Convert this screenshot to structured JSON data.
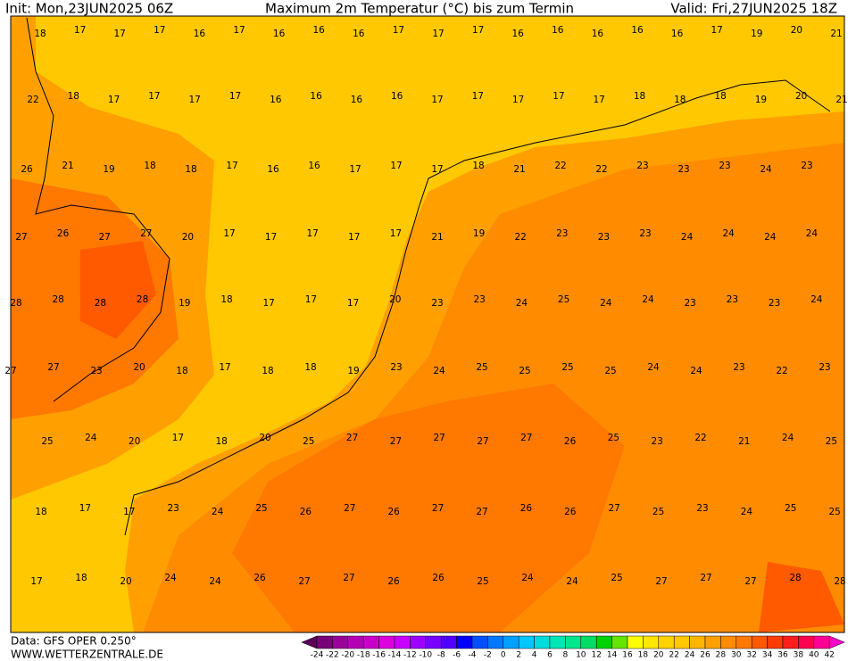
{
  "header": {
    "init": "Init: Mon,23JUN2025 06Z",
    "title": "Maximum 2m Temperatur (°C) bis zum Termin",
    "valid": "Valid: Fri,27JUN2025 18Z"
  },
  "map": {
    "rows": [
      [
        18,
        17,
        17,
        17,
        16,
        17,
        16,
        16,
        16,
        17,
        17,
        17,
        16,
        16,
        16,
        16,
        16,
        17,
        19,
        20,
        21
      ],
      [
        22,
        18,
        17,
        17,
        17,
        17,
        16,
        16,
        16,
        16,
        17,
        17,
        17,
        17,
        17,
        18,
        18,
        18,
        19,
        20,
        21
      ],
      [
        26,
        21,
        19,
        18,
        18,
        17,
        16,
        16,
        17,
        17,
        17,
        18,
        21,
        22,
        22,
        23,
        23,
        23,
        24,
        23
      ],
      [
        27,
        26,
        27,
        27,
        20,
        17,
        17,
        17,
        17,
        17,
        21,
        19,
        22,
        23,
        23,
        23,
        24,
        24,
        24,
        24
      ],
      [
        28,
        28,
        28,
        28,
        19,
        18,
        17,
        17,
        17,
        20,
        23,
        23,
        24,
        25,
        24,
        24,
        23,
        23,
        23,
        24
      ],
      [
        27,
        27,
        23,
        20,
        18,
        17,
        18,
        18,
        19,
        23,
        24,
        25,
        25,
        25,
        25,
        24,
        24,
        23,
        22,
        23
      ],
      [
        25,
        24,
        20,
        17,
        18,
        20,
        25,
        27,
        27,
        27,
        27,
        27,
        26,
        25,
        23,
        22,
        21,
        24,
        25
      ],
      [
        18,
        17,
        17,
        23,
        24,
        25,
        26,
        27,
        26,
        27,
        27,
        26,
        26,
        27,
        25,
        23,
        24,
        25,
        25
      ],
      [
        17,
        18,
        20,
        24,
        24,
        26,
        27,
        27,
        26,
        26,
        25,
        24,
        24,
        25,
        27,
        27,
        27,
        28,
        28
      ]
    ]
  },
  "colorbar": {
    "labels": [
      -24,
      -22,
      -20,
      -18,
      -16,
      -14,
      -12,
      -10,
      -8,
      -6,
      -4,
      -2,
      0,
      2,
      4,
      6,
      8,
      10,
      12,
      14,
      16,
      18,
      20,
      22,
      24,
      26,
      28,
      30,
      32,
      34,
      36,
      38,
      40,
      42
    ],
    "colors": [
      "#5a005a",
      "#780078",
      "#9a009a",
      "#b400b4",
      "#c800c8",
      "#dc00dc",
      "#c800ff",
      "#a000ff",
      "#7800ff",
      "#5000ff",
      "#0000ff",
      "#0050ff",
      "#0078ff",
      "#00a0ff",
      "#00c8ff",
      "#00dcdc",
      "#00e6b4",
      "#00e68c",
      "#00dc64",
      "#00d200",
      "#64e600",
      "#ffff00",
      "#ffe600",
      "#ffd200",
      "#ffc800",
      "#ffb400",
      "#ffa000",
      "#ff8c00",
      "#ff7800",
      "#ff5a00",
      "#ff3c00",
      "#ff1e1e",
      "#ff0050",
      "#ff0096",
      "#ff00c8"
    ]
  },
  "footer": {
    "data": "Data: GFS OPER 0.250°",
    "site": "WWW.WETTERZENTRALE.DE"
  }
}
